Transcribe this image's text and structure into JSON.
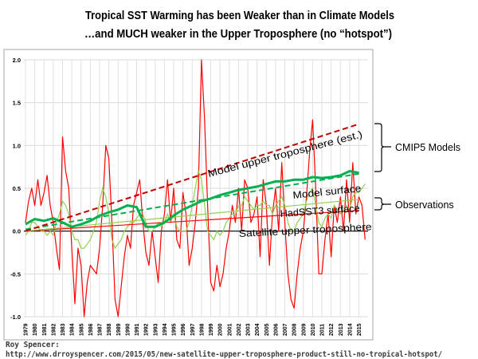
{
  "chart_data": {
    "type": "line",
    "title": [
      "Tropical SST Warming has been Weaker than in Climate Models",
      "…and MUCH weaker in the Upper Troposphere (no “hotspot”)"
    ],
    "xlabel": "",
    "ylabel": "",
    "xlim": [
      1979,
      2015
    ],
    "ylim": [
      -1.0,
      2.0
    ],
    "yticks": [
      "2.0",
      "1.5",
      "1.0",
      "0.5",
      "0.0",
      "-0.5",
      "-1.0"
    ],
    "ytick_values": [
      2.0,
      1.5,
      1.0,
      0.5,
      0.0,
      -0.5,
      -1.0
    ],
    "xticks": [
      "1979",
      "1980",
      "1981",
      "1982",
      "1983",
      "1984",
      "1985",
      "1986",
      "1987",
      "1988",
      "1989",
      "1990",
      "1991",
      "1992",
      "1993",
      "1994",
      "1995",
      "1996",
      "1997",
      "1998",
      "1999",
      "2000",
      "2001",
      "2002",
      "2003",
      "2004",
      "2005",
      "2006",
      "2007",
      "2008",
      "2009",
      "2010",
      "2011",
      "2012",
      "2013",
      "2014",
      "2015"
    ],
    "grid": true,
    "series": [
      {
        "key": "satellite",
        "color": "#ff0000",
        "samples_per_year": 3,
        "start": 1979,
        "values": [
          0.1,
          0.35,
          0.5,
          0.3,
          0.6,
          0.3,
          0.45,
          0.65,
          0.3,
          0.1,
          -0.2,
          -0.45,
          1.1,
          0.7,
          0.5,
          -0.2,
          -0.85,
          -0.2,
          -0.4,
          -1.0,
          -0.6,
          -0.4,
          -0.45,
          -0.5,
          -0.2,
          0.3,
          1.0,
          0.85,
          0.1,
          -0.8,
          -1.0,
          -0.65,
          -0.3,
          -0.05,
          -0.2,
          0.3,
          0.45,
          0.6,
          0.1,
          -0.25,
          -0.4,
          0.0,
          -0.3,
          -0.6,
          0.0,
          0.2,
          0.6,
          0.1,
          0.5,
          -0.1,
          -0.2,
          0.45,
          0.2,
          -0.4,
          -0.2,
          0.1,
          0.5,
          2.0,
          1.3,
          0.3,
          -0.6,
          -0.7,
          -0.4,
          -0.65,
          -0.5,
          -0.2,
          0.0,
          0.3,
          0.1,
          0.5,
          0.0,
          0.6,
          0.5,
          0.1,
          0.2,
          0.4,
          -0.3,
          0.6,
          0.3,
          -0.4,
          0.2,
          0.5,
          0.0,
          0.8,
          0.1,
          -0.5,
          -0.8,
          -0.9,
          -0.5,
          -0.2,
          0.0,
          0.4,
          0.9,
          1.3,
          0.5,
          -0.5,
          -0.5,
          -0.1,
          0.2,
          -0.3,
          0.3,
          0.1,
          0.4,
          0.0,
          0.6,
          0.1,
          0.8,
          0.2,
          0.4,
          0.3,
          -0.1
        ]
      },
      {
        "key": "hadsst3",
        "color": "#92d050",
        "samples_per_year": 3,
        "start": 1979,
        "values": [
          -0.05,
          0.0,
          0.1,
          0.1,
          0.05,
          0.0,
          0.0,
          -0.05,
          0.0,
          -0.05,
          0.1,
          0.2,
          0.35,
          0.3,
          0.2,
          0.0,
          -0.1,
          -0.1,
          -0.2,
          -0.2,
          -0.15,
          -0.1,
          0.0,
          0.1,
          0.35,
          0.5,
          0.4,
          0.2,
          -0.1,
          -0.2,
          -0.15,
          -0.1,
          0.0,
          0.05,
          0.1,
          0.1,
          0.15,
          0.2,
          0.2,
          0.1,
          0.0,
          0.0,
          0.05,
          0.1,
          0.05,
          0.1,
          0.2,
          0.1,
          0.2,
          0.05,
          0.0,
          0.0,
          0.0,
          0.1,
          0.3,
          0.5,
          0.7,
          0.6,
          0.3,
          0.0,
          -0.05,
          -0.1,
          0.0,
          -0.05,
          0.0,
          0.1,
          0.15,
          0.2,
          0.2,
          0.3,
          0.3,
          0.4,
          0.35,
          0.3,
          0.25,
          0.3,
          0.3,
          0.35,
          0.3,
          0.3,
          0.2,
          0.3,
          0.35,
          0.4,
          0.3,
          0.1,
          0.0,
          0.0,
          0.1,
          0.15,
          0.2,
          0.35,
          0.45,
          0.5,
          0.3,
          0.1,
          0.05,
          0.15,
          0.2,
          0.15,
          0.3,
          0.25,
          0.2,
          0.25,
          0.3,
          0.25,
          0.4,
          0.45,
          0.45,
          0.5,
          0.55
        ]
      },
      {
        "key": "model_surface",
        "color": "#00b050",
        "samples_per_year": 1,
        "start": 1979,
        "values": [
          0.08,
          0.14,
          0.12,
          0.15,
          0.1,
          0.05,
          0.08,
          0.12,
          0.18,
          0.22,
          0.25,
          0.3,
          0.28,
          0.05,
          0.05,
          0.1,
          0.18,
          0.25,
          0.3,
          0.35,
          0.38,
          0.42,
          0.45,
          0.48,
          0.5,
          0.52,
          0.55,
          0.58,
          0.58,
          0.6,
          0.6,
          0.63,
          0.62,
          0.63,
          0.65,
          0.7,
          0.68
        ]
      }
    ],
    "trend_lines": [
      {
        "key": "model_upper_trop_trend",
        "color": "#c00000",
        "dashed": true,
        "from": [
          1979,
          0.0
        ],
        "to": [
          2015,
          1.25
        ]
      },
      {
        "key": "model_surface_trend",
        "color": "#00b050",
        "dashed": true,
        "from": [
          1979,
          0.02
        ],
        "to": [
          2015,
          0.67
        ]
      },
      {
        "key": "hadsst3_trend",
        "color": "#92d050",
        "dashed": false,
        "from": [
          1979,
          0.0
        ],
        "to": [
          2015,
          0.37
        ]
      },
      {
        "key": "satellite_trend",
        "color": "#ff0000",
        "dashed": false,
        "from": [
          1979,
          0.0
        ],
        "to": [
          2015,
          0.24
        ]
      }
    ],
    "annotations": {
      "model_upper_trop": "Model upper troposphere (est.)",
      "model_surface": "Model surface",
      "hadsst3": "HadSST3 surface",
      "satellite": "Satellite upper troposphere"
    },
    "brackets": {
      "cmip5": "CMIP5 Models",
      "observations": "Observations"
    }
  },
  "footer": {
    "author": "Roy Spencer:",
    "url": "http://www.drroyspencer.com/2015/05/new-satellite-upper-troposphere-product-still-no-tropical-hotspot/"
  }
}
